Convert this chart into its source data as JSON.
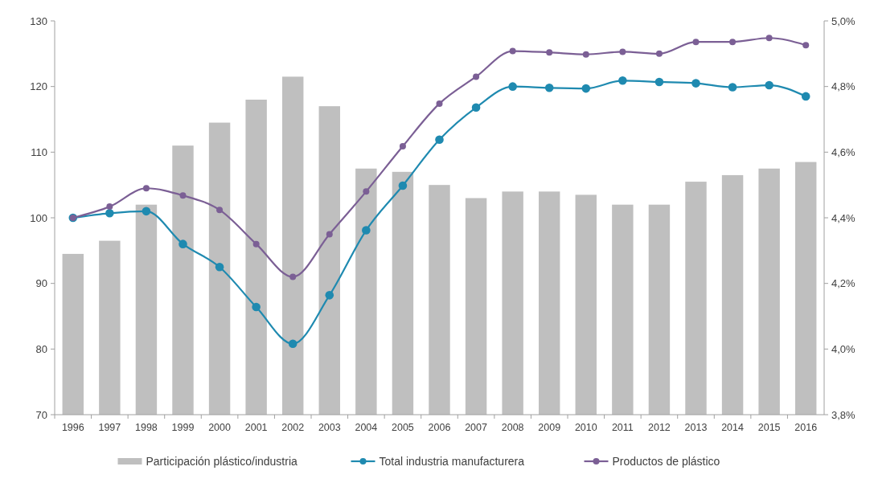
{
  "chart_data": {
    "type": "bar",
    "categories": [
      "1996",
      "1997",
      "1998",
      "1999",
      "2000",
      "2001",
      "2002",
      "2003",
      "2004",
      "2005",
      "2006",
      "2007",
      "2008",
      "2009",
      "2010",
      "2011",
      "2012",
      "2013",
      "2014",
      "2015",
      "2016"
    ],
    "series": [
      {
        "name": "Participación plástico/industria",
        "color": "#bfbfbf",
        "axis": "y2",
        "values": [
          4.29,
          4.33,
          4.44,
          4.62,
          4.69,
          4.76,
          4.83,
          4.74,
          4.55,
          4.54,
          4.5,
          4.46,
          4.48,
          4.48,
          4.47,
          4.44,
          4.44,
          4.51,
          4.53,
          4.55,
          4.57
        ]
      },
      {
        "name": "Total industria manufacturera",
        "color": "#1f8ab0",
        "type": "line",
        "marker": "circle",
        "values": [
          100,
          100.7,
          101,
          96,
          92.5,
          86.4,
          80.8,
          88.2,
          98.1,
          104.9,
          111.9,
          116.8,
          120,
          119.8,
          119.7,
          120.9,
          120.7,
          120.5,
          119.9,
          120.2,
          118.5
        ]
      },
      {
        "name": "Productos de plástico",
        "color": "#7b5f95",
        "type": "line",
        "marker": "circle",
        "values": [
          100,
          101.7,
          104.5,
          103.4,
          101.2,
          96,
          91,
          97.5,
          104,
          110.9,
          117.4,
          121.5,
          125.4,
          125.2,
          124.9,
          125.3,
          125,
          126.8,
          126.8,
          127.4,
          126.3
        ]
      }
    ],
    "ylim": [
      70,
      130
    ],
    "yticks": [
      70,
      80,
      90,
      100,
      110,
      120,
      130
    ],
    "y2lim": [
      3.8,
      5.0
    ],
    "y2ticks": [
      {
        "value": 3.8,
        "label": "3,8%"
      },
      {
        "value": 4.0,
        "label": "4,0%"
      },
      {
        "value": 4.2,
        "label": "4,2%"
      },
      {
        "value": 4.4,
        "label": "4,4%"
      },
      {
        "value": 4.6,
        "label": "4,6%"
      },
      {
        "value": 4.8,
        "label": "4,8%"
      },
      {
        "value": 5.0,
        "label": "5,0%"
      }
    ],
    "grid": false,
    "legend": "bottom"
  }
}
